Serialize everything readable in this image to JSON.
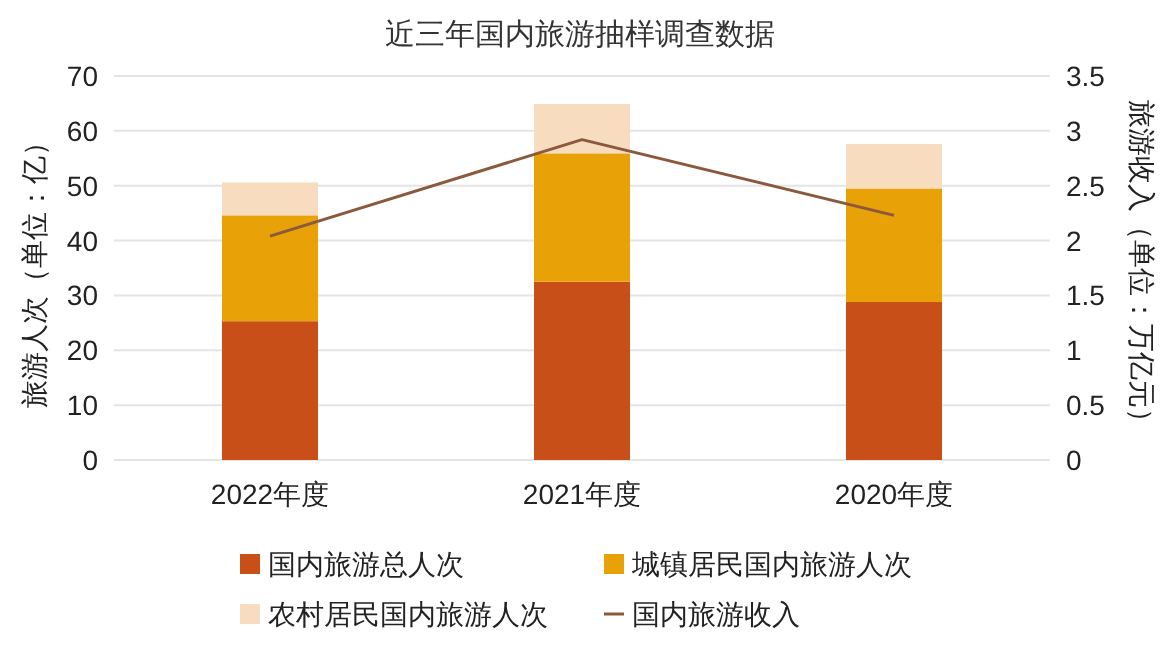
{
  "chart_data": {
    "type": "bar",
    "title": "近三年国内旅游抽样调查数据",
    "ylabel": "旅游人次（单位：亿）",
    "y2label": "旅游收入（单位：万亿元）",
    "categories": [
      "2022年度",
      "2021年度",
      "2020年度"
    ],
    "stacked": true,
    "series": [
      {
        "name": "国内旅游总人次",
        "color": "#c84f18",
        "values": [
          25.3,
          32.5,
          28.8
        ]
      },
      {
        "name": "城镇居民国内旅游人次",
        "color": "#e8a208",
        "values": [
          19.3,
          23.4,
          20.7
        ]
      },
      {
        "name": "农村居民国内旅游人次",
        "color": "#f8dcc0",
        "values": [
          6.0,
          9.0,
          8.1
        ]
      },
      {
        "name": "国内旅游收入",
        "type": "line",
        "axis": "y2",
        "color": "#8b5a3c",
        "values": [
          2.04,
          2.92,
          2.23
        ]
      }
    ],
    "ylim": [
      0,
      70
    ],
    "yticks": [
      0,
      10,
      20,
      30,
      40,
      50,
      60,
      70
    ],
    "y2lim": [
      0,
      3.5
    ],
    "y2ticks": [
      0,
      0.5,
      1,
      1.5,
      2,
      2.5,
      3,
      3.5
    ],
    "grid": "y",
    "legend": "bottom"
  }
}
